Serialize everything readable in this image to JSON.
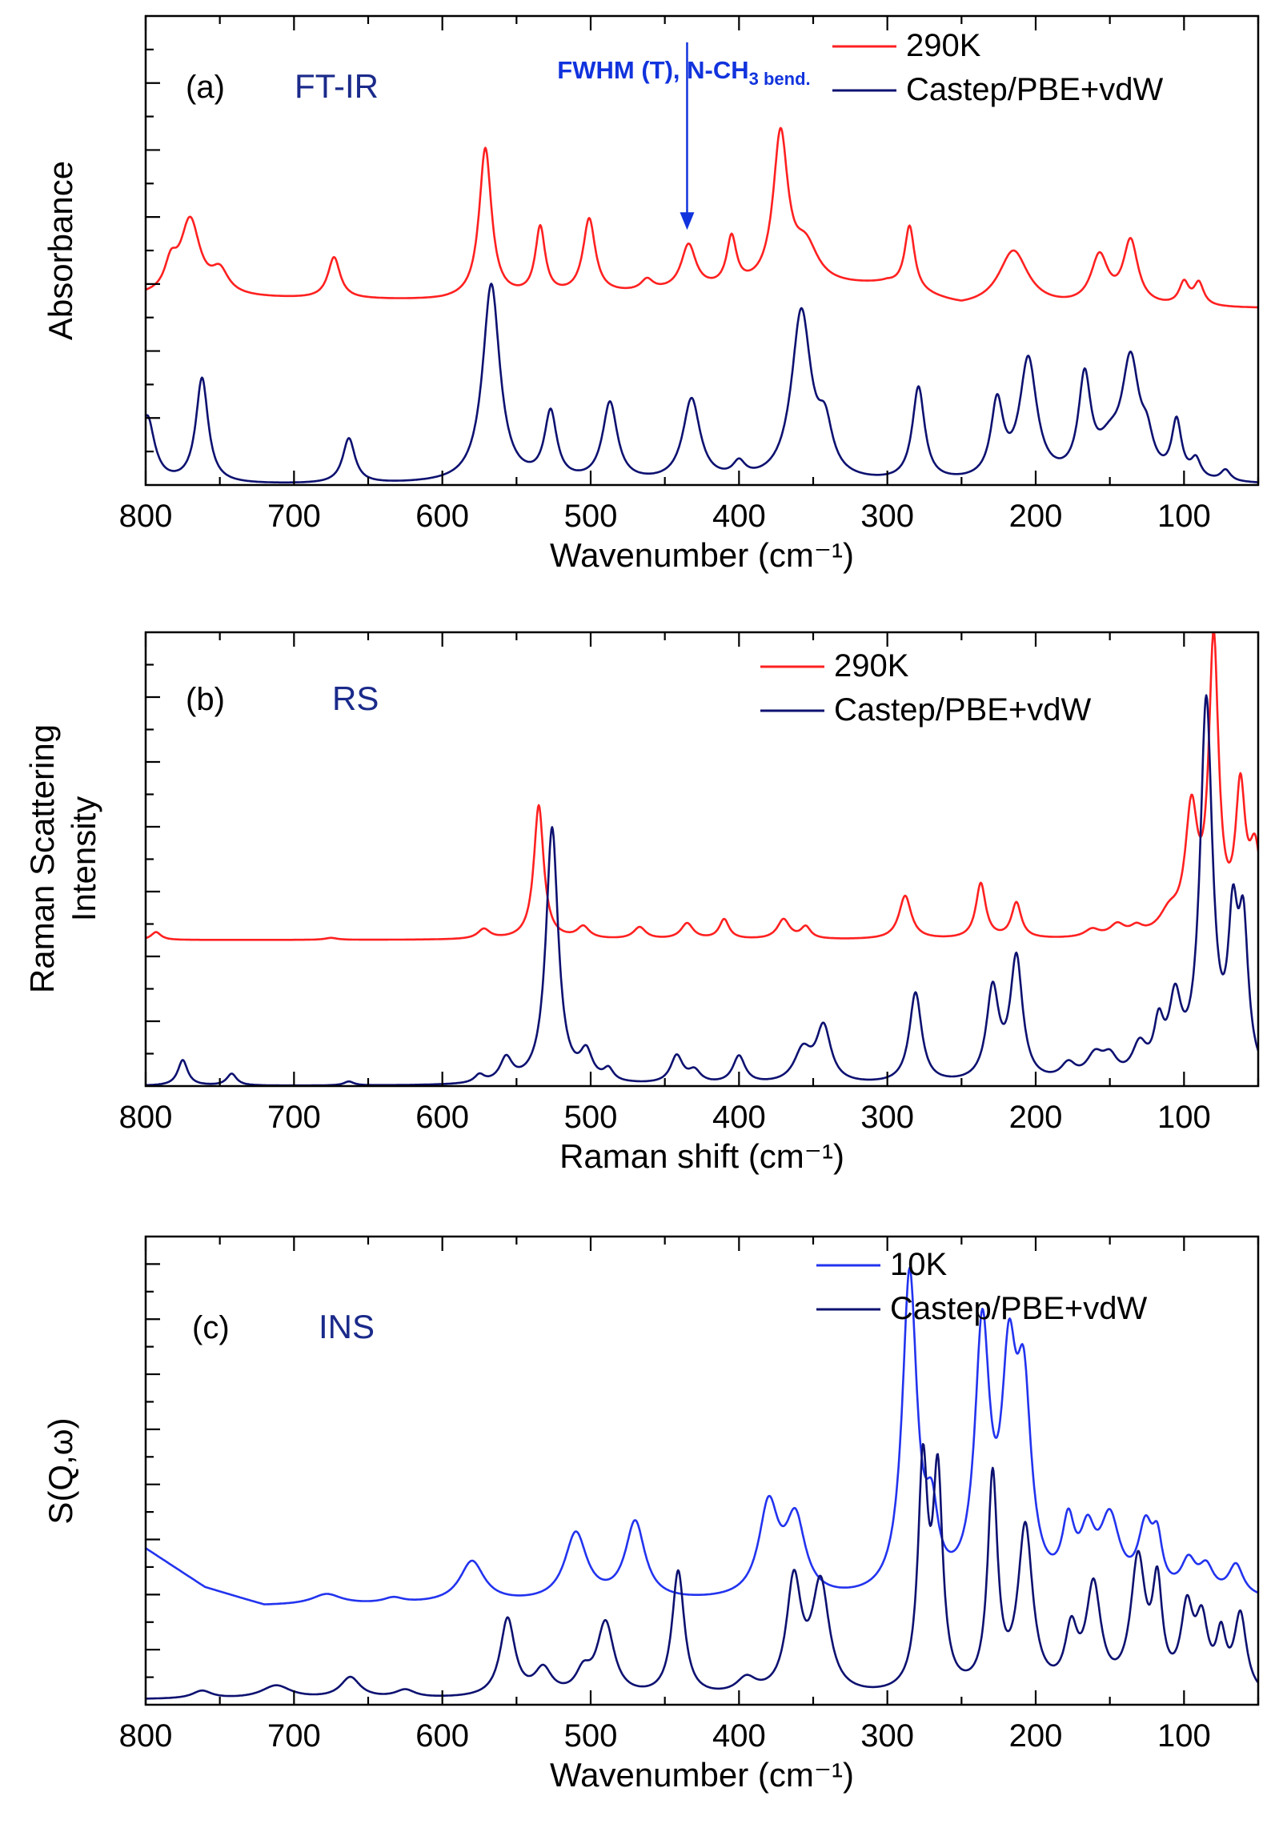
{
  "figure": {
    "colors": {
      "axis": "#000000",
      "exp_ir_raman": "#ff2020",
      "exp_ins": "#2233ee",
      "calc": "#0d1170",
      "label": "#1a2a8a",
      "arrow": "#1133dd"
    }
  },
  "chart_data": [
    {
      "type": "line",
      "panel_label": "(a)",
      "technique": "FT-IR",
      "xlabel": "Wavenumber (cm⁻¹)",
      "ylabel": "Absorbance",
      "xlim": [
        800,
        50
      ],
      "ylim": [
        0,
        1.25
      ],
      "x_ticks": [
        800,
        700,
        600,
        500,
        400,
        300,
        200,
        100
      ],
      "annotation": {
        "text": "FWHM (T), N-CH",
        "sub": "3 bend.",
        "x": 435,
        "y_from": 1.18,
        "y_to": 0.68
      },
      "series": [
        {
          "name": "290K",
          "color": "#ff2020",
          "baseline": 0.5,
          "base_points": [
            [
              800,
              0.5
            ],
            [
              600,
              0.49
            ],
            [
              300,
              0.53
            ],
            [
              250,
              0.47
            ],
            [
              50,
              0.47
            ]
          ],
          "peaks": [
            [
              770,
              0.2,
              8
            ],
            [
              783,
              0.07,
              5
            ],
            [
              750,
              0.06,
              7
            ],
            [
              673,
              0.11,
              5
            ],
            [
              571,
              0.4,
              5
            ],
            [
              534,
              0.18,
              4
            ],
            [
              501,
              0.2,
              5
            ],
            [
              462,
              0.03,
              5
            ],
            [
              434,
              0.12,
              6
            ],
            [
              405,
              0.13,
              4
            ],
            [
              372,
              0.4,
              6
            ],
            [
              355,
              0.1,
              10
            ],
            [
              285,
              0.17,
              4
            ],
            [
              215,
              0.15,
              12
            ],
            [
              157,
              0.13,
              7
            ],
            [
              136,
              0.17,
              6
            ],
            [
              100,
              0.06,
              4
            ],
            [
              90,
              0.06,
              4
            ]
          ]
        },
        {
          "name": "Castep/PBE+vdW",
          "color": "#0d1170",
          "baseline": 0.0,
          "base_points": [
            [
              800,
              0.0
            ],
            [
              50,
              0.0
            ]
          ],
          "peaks": [
            [
              799,
              0.18,
              6
            ],
            [
              762,
              0.28,
              5
            ],
            [
              663,
              0.12,
              5
            ],
            [
              567,
              0.53,
              7
            ],
            [
              527,
              0.18,
              5
            ],
            [
              487,
              0.21,
              6
            ],
            [
              432,
              0.22,
              7
            ],
            [
              400,
              0.04,
              5
            ],
            [
              358,
              0.45,
              8
            ],
            [
              342,
              0.12,
              6
            ],
            [
              279,
              0.25,
              5
            ],
            [
              226,
              0.2,
              5
            ],
            [
              205,
              0.32,
              7
            ],
            [
              167,
              0.26,
              5
            ],
            [
              150,
              0.08,
              10
            ],
            [
              136,
              0.3,
              7
            ],
            [
              125,
              0.08,
              5
            ],
            [
              105,
              0.15,
              4
            ],
            [
              92,
              0.05,
              4
            ],
            [
              72,
              0.03,
              4
            ]
          ]
        }
      ]
    },
    {
      "type": "line",
      "panel_label": "(b)",
      "technique": "RS",
      "xlabel": "Raman shift (cm⁻¹)",
      "ylabel": "Raman Scattering Intensity",
      "xlim": [
        800,
        50
      ],
      "ylim": [
        0,
        1.15
      ],
      "x_ticks": [
        800,
        700,
        600,
        500,
        400,
        300,
        200,
        100
      ],
      "series": [
        {
          "name": "290K",
          "color": "#ff2020",
          "baseline": 0.37,
          "base_points": [
            [
              800,
              0.37
            ],
            [
              50,
              0.37
            ]
          ],
          "peaks": [
            [
              793,
              0.02,
              4
            ],
            [
              675,
              0.005,
              5
            ],
            [
              572,
              0.025,
              5
            ],
            [
              535,
              0.34,
              4
            ],
            [
              505,
              0.03,
              5
            ],
            [
              467,
              0.03,
              5
            ],
            [
              435,
              0.04,
              5
            ],
            [
              410,
              0.05,
              4
            ],
            [
              370,
              0.05,
              5
            ],
            [
              355,
              0.03,
              4
            ],
            [
              288,
              0.11,
              5
            ],
            [
              237,
              0.14,
              4
            ],
            [
              213,
              0.09,
              4
            ],
            [
              162,
              0.02,
              6
            ],
            [
              145,
              0.03,
              6
            ],
            [
              132,
              0.02,
              5
            ],
            [
              110,
              0.05,
              8
            ],
            [
              95,
              0.3,
              5
            ],
            [
              80,
              0.73,
              4
            ],
            [
              62,
              0.34,
              4
            ],
            [
              52,
              0.2,
              5
            ]
          ]
        },
        {
          "name": "Castep/PBE+vdW",
          "color": "#0d1170",
          "baseline": 0.0,
          "base_points": [
            [
              800,
              0.0
            ],
            [
              50,
              0.0
            ]
          ],
          "peaks": [
            [
              775,
              0.065,
              4
            ],
            [
              742,
              0.03,
              4
            ],
            [
              663,
              0.01,
              4
            ],
            [
              575,
              0.02,
              4
            ],
            [
              557,
              0.06,
              5
            ],
            [
              526,
              0.65,
              5
            ],
            [
              503,
              0.07,
              5
            ],
            [
              488,
              0.03,
              4
            ],
            [
              442,
              0.07,
              5
            ],
            [
              430,
              0.03,
              5
            ],
            [
              400,
              0.07,
              5
            ],
            [
              357,
              0.08,
              7
            ],
            [
              343,
              0.14,
              6
            ],
            [
              281,
              0.23,
              5
            ],
            [
              229,
              0.23,
              5
            ],
            [
              213,
              0.31,
              5
            ],
            [
              178,
              0.04,
              6
            ],
            [
              160,
              0.06,
              7
            ],
            [
              150,
              0.05,
              6
            ],
            [
              130,
              0.08,
              6
            ],
            [
              117,
              0.12,
              4
            ],
            [
              106,
              0.18,
              5
            ],
            [
              85,
              0.95,
              5
            ],
            [
              67,
              0.35,
              4
            ],
            [
              60,
              0.35,
              4
            ]
          ]
        }
      ]
    },
    {
      "type": "line",
      "panel_label": "(c)",
      "technique": "INS",
      "xlabel": "Wavenumber (cm⁻¹)",
      "ylabel": "S(Q,ω)",
      "xlim": [
        800,
        50
      ],
      "ylim": [
        0,
        1.8
      ],
      "x_ticks": [
        800,
        700,
        600,
        500,
        400,
        300,
        200,
        100
      ],
      "series": [
        {
          "name": "10K",
          "color": "#2233ee",
          "baseline": 0.38,
          "base_points": [
            [
              800,
              0.6
            ],
            [
              760,
              0.45
            ],
            [
              720,
              0.38
            ],
            [
              400,
              0.39
            ],
            [
              300,
              0.39
            ],
            [
              200,
              0.39
            ],
            [
              100,
              0.4
            ],
            [
              50,
              0.4
            ]
          ],
          "peaks": [
            [
              678,
              0.04,
              12
            ],
            [
              633,
              0.02,
              8
            ],
            [
              580,
              0.16,
              10
            ],
            [
              510,
              0.26,
              9
            ],
            [
              470,
              0.3,
              8
            ],
            [
              380,
              0.35,
              8
            ],
            [
              362,
              0.29,
              8
            ],
            [
              285,
              1.23,
              6
            ],
            [
              270,
              0.25,
              5
            ],
            [
              236,
              0.99,
              6
            ],
            [
              218,
              0.78,
              6
            ],
            [
              208,
              0.7,
              6
            ],
            [
              178,
              0.24,
              5
            ],
            [
              165,
              0.2,
              6
            ],
            [
              150,
              0.28,
              8
            ],
            [
              126,
              0.24,
              6
            ],
            [
              118,
              0.17,
              4
            ],
            [
              97,
              0.12,
              6
            ],
            [
              85,
              0.1,
              6
            ],
            [
              65,
              0.12,
              6
            ]
          ]
        },
        {
          "name": "Castep/PBE+vdW",
          "color": "#0d1170",
          "baseline": 0.02,
          "base_points": [
            [
              800,
              0.02
            ],
            [
              50,
              0.02
            ]
          ],
          "peaks": [
            [
              762,
              0.03,
              8
            ],
            [
              712,
              0.05,
              12
            ],
            [
              662,
              0.08,
              8
            ],
            [
              625,
              0.03,
              8
            ],
            [
              556,
              0.3,
              6
            ],
            [
              532,
              0.1,
              7
            ],
            [
              490,
              0.28,
              7
            ],
            [
              505,
              0.08,
              6
            ],
            [
              441,
              0.48,
              5
            ],
            [
              395,
              0.06,
              8
            ],
            [
              363,
              0.43,
              6
            ],
            [
              345,
              0.42,
              7
            ],
            [
              276,
              0.85,
              4
            ],
            [
              266,
              0.8,
              4
            ],
            [
              229,
              0.82,
              4
            ],
            [
              207,
              0.63,
              6
            ],
            [
              176,
              0.22,
              5
            ],
            [
              161,
              0.4,
              6
            ],
            [
              131,
              0.5,
              6
            ],
            [
              118,
              0.38,
              4
            ],
            [
              98,
              0.3,
              5
            ],
            [
              88,
              0.25,
              5
            ],
            [
              75,
              0.2,
              4
            ],
            [
              62,
              0.3,
              5
            ]
          ]
        }
      ]
    }
  ]
}
